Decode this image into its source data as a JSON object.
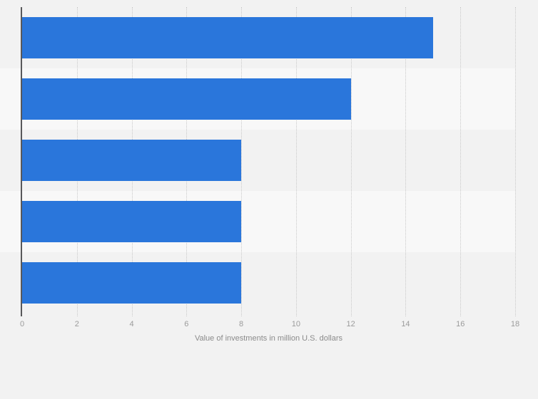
{
  "chart_data": {
    "type": "bar",
    "orientation": "horizontal",
    "values": [
      15,
      12,
      8,
      8,
      8
    ],
    "xlabel": "Value of investments in million U.S. dollars",
    "xlim": [
      0,
      18
    ],
    "xticks": [
      0,
      2,
      4,
      6,
      8,
      10,
      12,
      14,
      16,
      18
    ],
    "grid": "vertical dotted gridlines at each x tick",
    "legend": "none",
    "alternating_row_shading": true,
    "category_labels_visible": false
  },
  "colors": {
    "page_bg": "#f2f2f2",
    "row_band_light": "#f8f8f8",
    "bar_fill": "#2a76db",
    "axis_line": "#58585a",
    "gridline": "#c9c9c9",
    "tick_label": "#9b9b9b",
    "axis_title": "#8b8b8b"
  }
}
